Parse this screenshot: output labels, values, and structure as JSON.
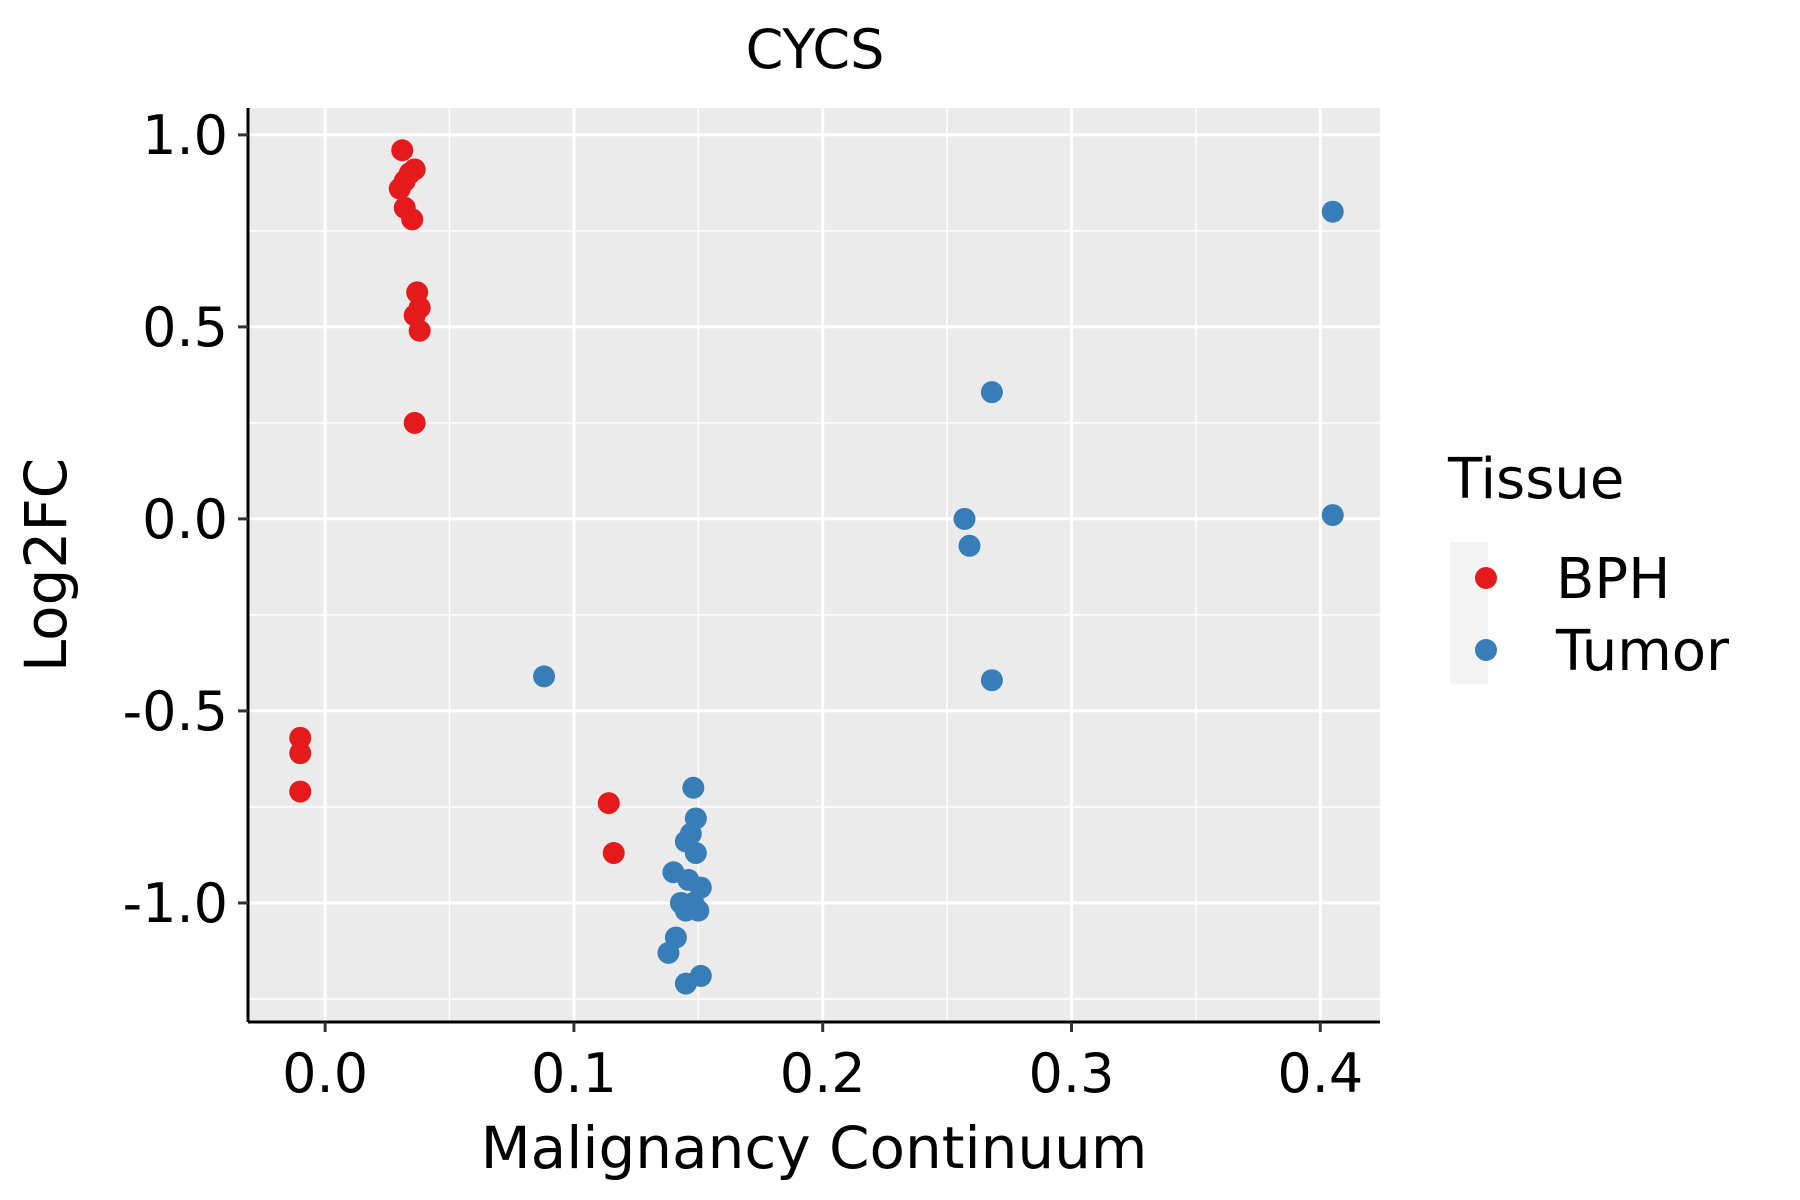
{
  "chart_data": {
    "type": "scatter",
    "title": "CYCS",
    "xlabel": "Malignancy Continuum",
    "ylabel": "Log2FC",
    "xlim": [
      -0.031,
      0.424
    ],
    "ylim": [
      -1.31,
      1.07
    ],
    "xticks": [
      0.0,
      0.1,
      0.2,
      0.3,
      0.4
    ],
    "xtick_labels": [
      "0.0",
      "0.1",
      "0.2",
      "0.3",
      "0.4"
    ],
    "yticks": [
      1.0,
      0.5,
      0.0,
      -0.5,
      -1.0
    ],
    "ytick_labels": [
      "1.0",
      "0.5",
      "0.0",
      "-0.5",
      "-1.0"
    ],
    "grid": true,
    "legend": {
      "title": "Tissue",
      "position": "right",
      "entries": [
        {
          "name": "BPH",
          "color": "#E41A1C"
        },
        {
          "name": "Tumor",
          "color": "#377EB8"
        }
      ]
    },
    "series": [
      {
        "name": "BPH",
        "color": "#E41A1C",
        "points": [
          {
            "x": 0.031,
            "y": 0.96
          },
          {
            "x": 0.036,
            "y": 0.91
          },
          {
            "x": 0.034,
            "y": 0.9
          },
          {
            "x": 0.032,
            "y": 0.88
          },
          {
            "x": 0.03,
            "y": 0.86
          },
          {
            "x": 0.032,
            "y": 0.81
          },
          {
            "x": 0.035,
            "y": 0.78
          },
          {
            "x": 0.037,
            "y": 0.59
          },
          {
            "x": 0.038,
            "y": 0.55
          },
          {
            "x": 0.036,
            "y": 0.53
          },
          {
            "x": 0.038,
            "y": 0.49
          },
          {
            "x": 0.036,
            "y": 0.25
          },
          {
            "x": -0.01,
            "y": -0.57
          },
          {
            "x": -0.01,
            "y": -0.61
          },
          {
            "x": -0.01,
            "y": -0.71
          },
          {
            "x": 0.114,
            "y": -0.74
          },
          {
            "x": 0.116,
            "y": -0.87
          }
        ]
      },
      {
        "name": "Tumor",
        "color": "#377EB8",
        "points": [
          {
            "x": 0.405,
            "y": 0.8
          },
          {
            "x": 0.268,
            "y": 0.33
          },
          {
            "x": 0.257,
            "y": 0.0
          },
          {
            "x": 0.259,
            "y": -0.07
          },
          {
            "x": 0.405,
            "y": 0.01
          },
          {
            "x": 0.268,
            "y": -0.42
          },
          {
            "x": 0.088,
            "y": -0.41
          },
          {
            "x": 0.148,
            "y": -0.7
          },
          {
            "x": 0.149,
            "y": -0.78
          },
          {
            "x": 0.147,
            "y": -0.82
          },
          {
            "x": 0.145,
            "y": -0.84
          },
          {
            "x": 0.149,
            "y": -0.87
          },
          {
            "x": 0.14,
            "y": -0.92
          },
          {
            "x": 0.146,
            "y": -0.94
          },
          {
            "x": 0.151,
            "y": -0.96
          },
          {
            "x": 0.143,
            "y": -1.0
          },
          {
            "x": 0.148,
            "y": -1.0
          },
          {
            "x": 0.145,
            "y": -1.02
          },
          {
            "x": 0.15,
            "y": -1.02
          },
          {
            "x": 0.141,
            "y": -1.09
          },
          {
            "x": 0.138,
            "y": -1.13
          },
          {
            "x": 0.151,
            "y": -1.19
          },
          {
            "x": 0.145,
            "y": -1.21
          }
        ]
      }
    ]
  }
}
